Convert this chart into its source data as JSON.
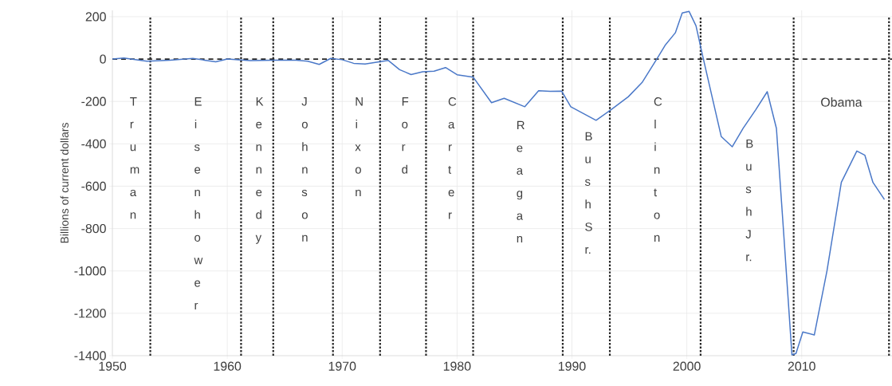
{
  "chart_data": {
    "type": "line",
    "ylabel": "Billions of current dollars",
    "x": [
      1950,
      1951,
      1953,
      1955,
      1957,
      1958,
      1959,
      1960,
      1962,
      1964,
      1966,
      1967,
      1968,
      1969,
      1970,
      1971,
      1972,
      1973,
      1974,
      1975,
      1976,
      1977,
      1978,
      1979,
      1980,
      1981.4,
      1983,
      1984.1,
      1985.9,
      1987.1,
      1988.1,
      1989.1,
      1989.9,
      1992.1,
      1993.4,
      1994.9,
      1996.1,
      1997.5,
      1998.1,
      1999,
      1999.6,
      2000.2,
      2000.8,
      2001.4,
      2002.2,
      2003,
      2003.95,
      2004.9,
      2006,
      2007,
      2007.8,
      2008.4,
      2009.15,
      2009.5,
      2010.1,
      2011.1,
      2012.2,
      2013.45,
      2014.8,
      2015.5,
      2016.2,
      2017.2
    ],
    "series": [
      {
        "color": "#4a78c8",
        "values": [
          0,
          5,
          -10,
          -5,
          3,
          -5,
          -13,
          0,
          -7,
          -5,
          -5,
          -10,
          -25,
          3,
          -3,
          -20,
          -23,
          -15,
          -6,
          -50,
          -73,
          -60,
          -57,
          -40,
          -74,
          -85,
          -206,
          -185,
          -225,
          -149,
          -152,
          -151,
          -225,
          -289,
          -239,
          -178,
          -111,
          10,
          64,
          124,
          218,
          225,
          157,
          10,
          -178,
          -366,
          -414,
          -327,
          -239,
          -154,
          -327,
          -797,
          -1396,
          -1390,
          -1288,
          -1302,
          -1000,
          -582,
          -434,
          -454,
          -582,
          -663
        ]
      }
    ],
    "xlim": [
      1950,
      2018
    ],
    "ylim": [
      -1400,
      230
    ],
    "xticks": [
      1950,
      1960,
      1970,
      1980,
      1990,
      2000,
      2010
    ],
    "yticks": [
      -1400,
      -1200,
      -1000,
      -800,
      -600,
      -400,
      -200,
      0,
      200
    ],
    "grid": true,
    "marker": "none",
    "line_style": "solid",
    "ref_lines": [
      {
        "axis": "y",
        "value": 0,
        "line_style": "dashed"
      },
      {
        "axis": "x",
        "value": 1953.3,
        "line_style": "dotted"
      },
      {
        "axis": "x",
        "value": 1961.2,
        "line_style": "dotted"
      },
      {
        "axis": "x",
        "value": 1964,
        "line_style": "dotted"
      },
      {
        "axis": "x",
        "value": 1969.2,
        "line_style": "dotted"
      },
      {
        "axis": "x",
        "value": 1973.3,
        "line_style": "dotted"
      },
      {
        "axis": "x",
        "value": 1977.3,
        "line_style": "dotted"
      },
      {
        "axis": "x",
        "value": 1981.4,
        "line_style": "dotted"
      },
      {
        "axis": "x",
        "value": 1989.2,
        "line_style": "dotted"
      },
      {
        "axis": "x",
        "value": 1993.3,
        "line_style": "dotted"
      },
      {
        "axis": "x",
        "value": 2001.2,
        "line_style": "dotted"
      },
      {
        "axis": "x",
        "value": 2009.3,
        "line_style": "dotted"
      },
      {
        "axis": "x",
        "value": 2017.6,
        "line_style": "dotted"
      }
    ],
    "annotations": [
      "Truman",
      "Eisenhower",
      "Kennedy",
      "Johnson",
      "Nixon",
      "Ford",
      "Carter",
      "Reagan",
      "Bush Sr.",
      "Clinton",
      "Bush Jr.",
      "Obama"
    ]
  }
}
